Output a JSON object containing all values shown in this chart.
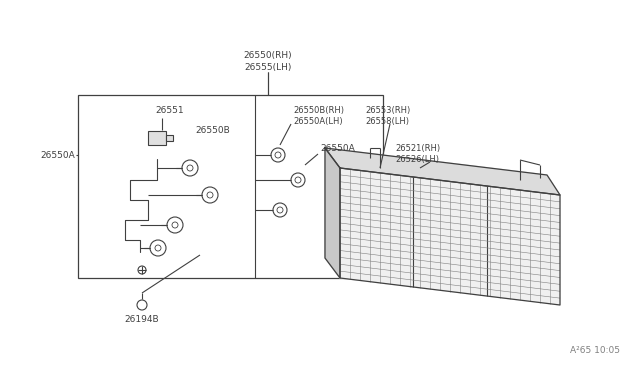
{
  "bg_color": "#ffffff",
  "line_color": "#404040",
  "text_color": "#404040",
  "grid_color": "#606060",
  "stamp": "A²65 10:05",
  "labels": {
    "top1": "26550(RH)",
    "top2": "26555(LH)",
    "left_26550A": "26550A",
    "left_26551": "26551",
    "left_26550B": "26550B",
    "mid1_1": "26550B(RH)",
    "mid1_2": "26550A(LH)",
    "mid2_1": "26553(RH)",
    "mid2_2": "26558(LH)",
    "mid3": "26550A",
    "right1_1": "26521(RH)",
    "right1_2": "26526(LH)",
    "bot": "26194B"
  }
}
